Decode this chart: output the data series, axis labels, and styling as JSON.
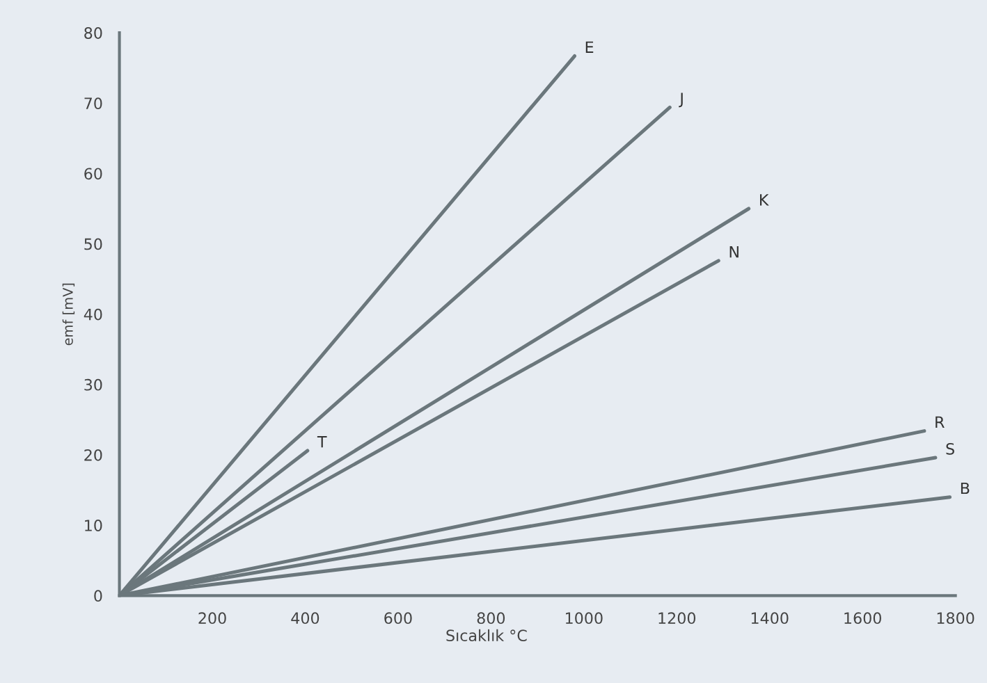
{
  "chart_data": {
    "type": "line",
    "xlabel": "Sıcaklık °C",
    "ylabel": "emf [mV]",
    "xlim": [
      0,
      1800
    ],
    "ylim": [
      0,
      80
    ],
    "xticks": [
      200,
      400,
      600,
      800,
      1000,
      1200,
      1400,
      1600,
      1800
    ],
    "yticks": [
      0,
      10,
      20,
      30,
      40,
      50,
      60,
      70,
      80
    ],
    "grid": false,
    "legend": false,
    "marker": "none",
    "line_style": "solid",
    "series": [
      {
        "name": "E",
        "color": "#6b777c",
        "x": [
          0,
          980
        ],
        "values": [
          0,
          76.7
        ]
      },
      {
        "name": "J",
        "color": "#6b777c",
        "x": [
          0,
          1185
        ],
        "values": [
          0,
          69.4
        ]
      },
      {
        "name": "T",
        "color": "#6b777c",
        "x": [
          0,
          405
        ],
        "values": [
          0,
          20.6
        ]
      },
      {
        "name": "K",
        "color": "#6b777c",
        "x": [
          0,
          1355
        ],
        "values": [
          0,
          55
        ]
      },
      {
        "name": "N",
        "color": "#6b777c",
        "x": [
          0,
          1290
        ],
        "values": [
          0,
          47.6
        ]
      },
      {
        "name": "R",
        "color": "#6b777c",
        "x": [
          0,
          1733
        ],
        "values": [
          0,
          23.4
        ]
      },
      {
        "name": "S",
        "color": "#6b777c",
        "x": [
          0,
          1757
        ],
        "values": [
          0,
          19.6
        ]
      },
      {
        "name": "B",
        "color": "#6b777c",
        "x": [
          0,
          1788
        ],
        "values": [
          0,
          14
        ]
      }
    ]
  }
}
